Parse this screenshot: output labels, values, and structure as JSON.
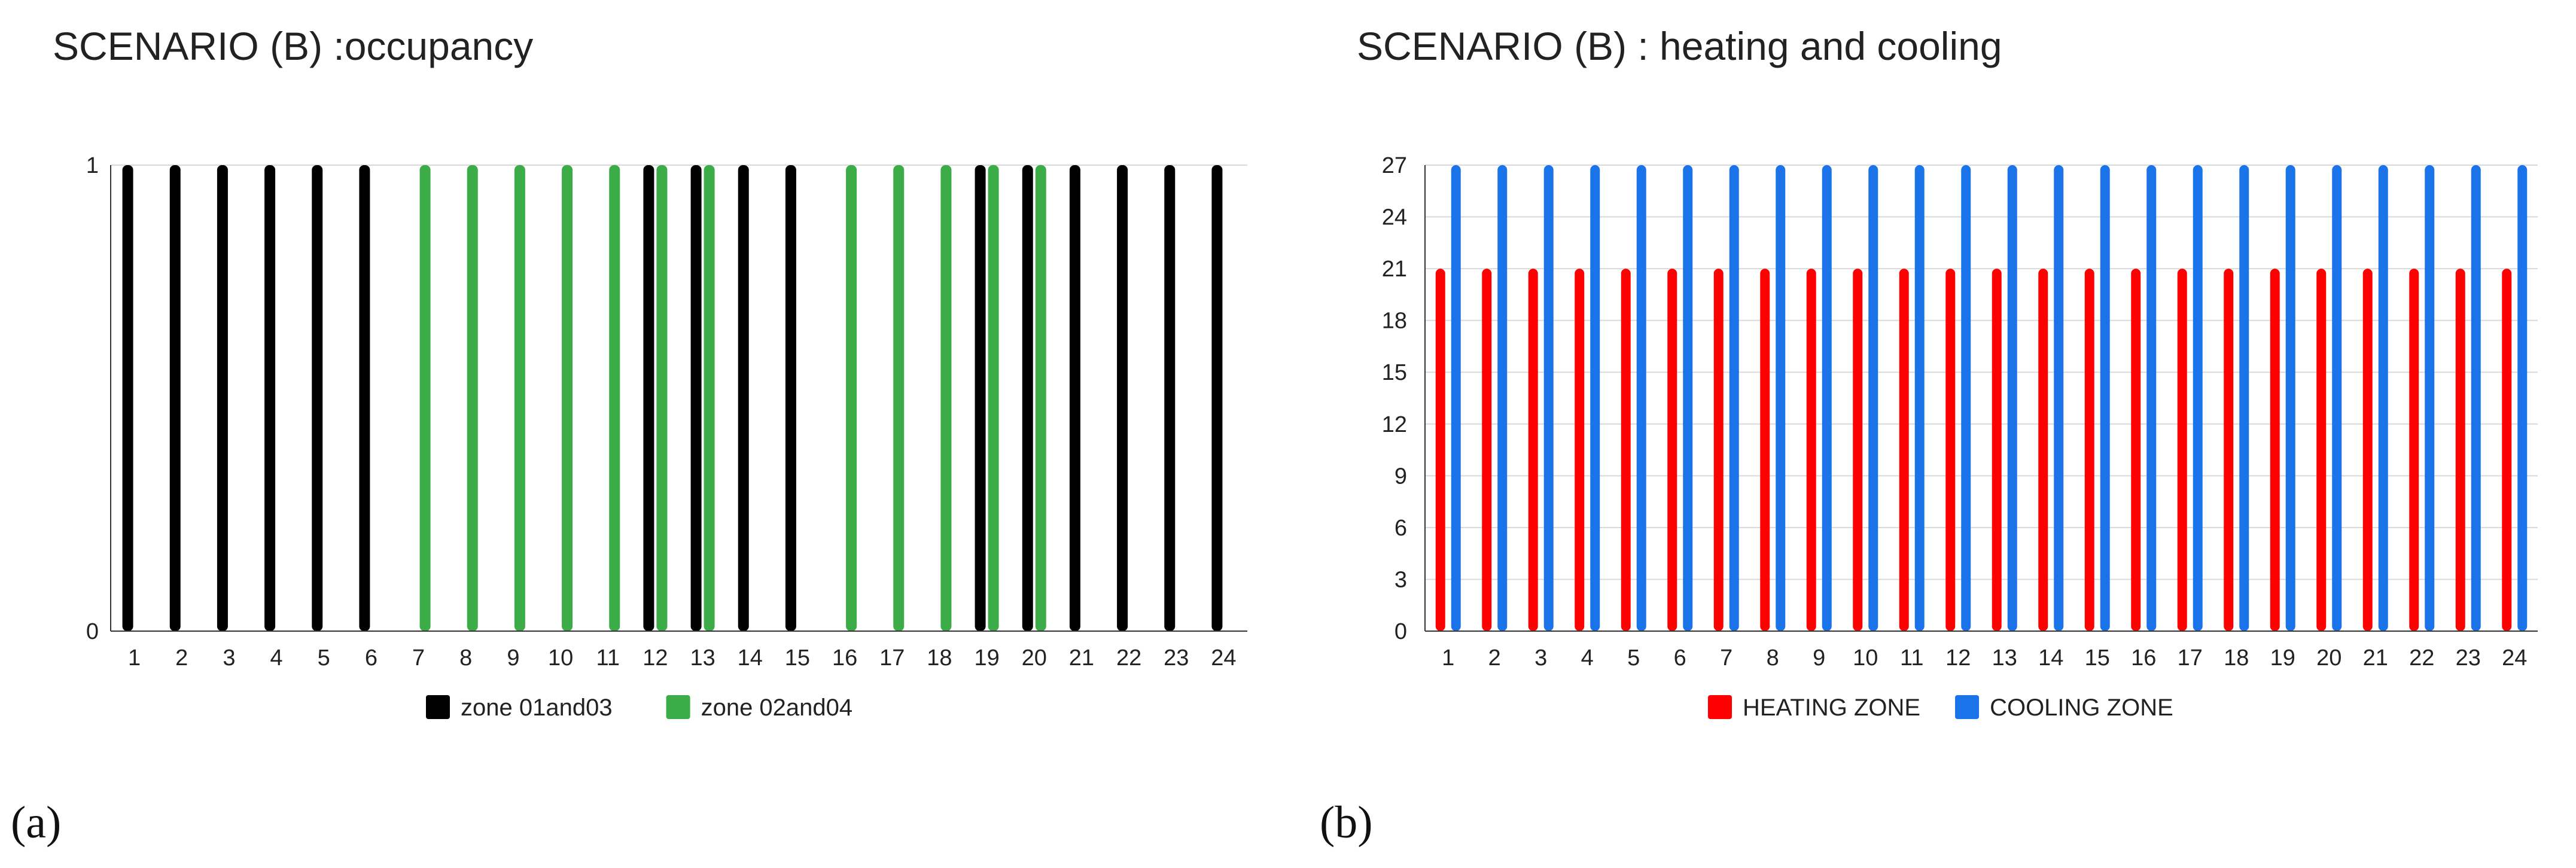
{
  "chart_data": [
    {
      "type": "bar",
      "title": "SCENARIO (B) :occupancy",
      "panel_label": "(a)",
      "xlabel": "",
      "ylabel": "",
      "categories": [
        "1",
        "2",
        "3",
        "4",
        "5",
        "6",
        "7",
        "8",
        "9",
        "10",
        "11",
        "12",
        "13",
        "14",
        "15",
        "16",
        "17",
        "18",
        "19",
        "20",
        "21",
        "22",
        "23",
        "24"
      ],
      "ylim": [
        0,
        1
      ],
      "yticks": [
        "0",
        "1"
      ],
      "grid": false,
      "legend": "bottom",
      "series": [
        {
          "name": "zone 01and03",
          "color": "#000000",
          "values": [
            1,
            1,
            1,
            1,
            1,
            1,
            0,
            0,
            0,
            0,
            0,
            1,
            1,
            1,
            1,
            0,
            0,
            0,
            1,
            1,
            1,
            1,
            1,
            1
          ]
        },
        {
          "name": "zone 02and04",
          "color": "#3cac48",
          "values": [
            0,
            0,
            0,
            0,
            0,
            0,
            1,
            1,
            1,
            1,
            1,
            1,
            1,
            0,
            0,
            1,
            1,
            1,
            1,
            1,
            0,
            0,
            0,
            0
          ]
        }
      ]
    },
    {
      "type": "bar",
      "title": "SCENARIO (B) : heating and cooling",
      "panel_label": "(b)",
      "xlabel": "",
      "ylabel": "",
      "categories": [
        "1",
        "2",
        "3",
        "4",
        "5",
        "6",
        "7",
        "8",
        "9",
        "10",
        "11",
        "12",
        "13",
        "14",
        "15",
        "16",
        "17",
        "18",
        "19",
        "20",
        "21",
        "22",
        "23",
        "24"
      ],
      "ylim": [
        0,
        27
      ],
      "yticks": [
        "0",
        "3",
        "6",
        "9",
        "12",
        "15",
        "18",
        "21",
        "24",
        "27"
      ],
      "grid": true,
      "legend": "bottom",
      "series": [
        {
          "name": "HEATING ZONE",
          "color": "#ff0000",
          "values": [
            21,
            21,
            21,
            21,
            21,
            21,
            21,
            21,
            21,
            21,
            21,
            21,
            21,
            21,
            21,
            21,
            21,
            21,
            21,
            21,
            21,
            21,
            21,
            21
          ]
        },
        {
          "name": "COOLING ZONE",
          "color": "#1a73e8",
          "values": [
            27,
            27,
            27,
            27,
            27,
            27,
            27,
            27,
            27,
            27,
            27,
            27,
            27,
            27,
            27,
            27,
            27,
            27,
            27,
            27,
            27,
            27,
            27,
            27
          ]
        }
      ]
    }
  ]
}
